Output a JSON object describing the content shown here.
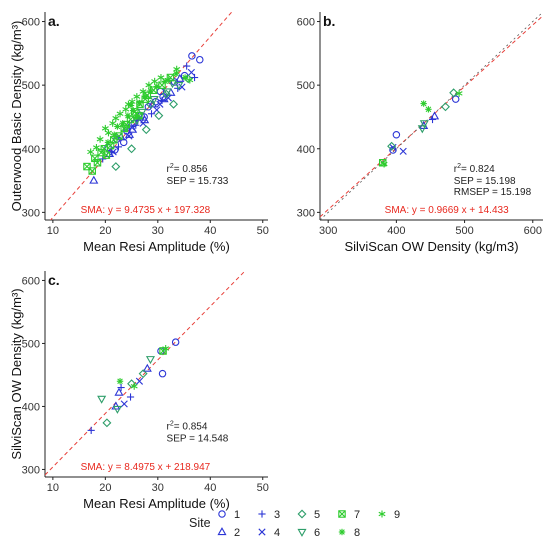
{
  "figure": {
    "legend_title": "Site",
    "legend_items": [
      {
        "label": "1",
        "symbol": "circle",
        "color": "#2b35d6"
      },
      {
        "label": "2",
        "symbol": "triangle",
        "color": "#2b35d6"
      },
      {
        "label": "3",
        "symbol": "plus",
        "color": "#2b35d6"
      },
      {
        "label": "4",
        "symbol": "cross",
        "color": "#2b35d6"
      },
      {
        "label": "5",
        "symbol": "diamond",
        "color": "#2e9e6a"
      },
      {
        "label": "6",
        "symbol": "down-triangle",
        "color": "#2e9e6a"
      },
      {
        "label": "7",
        "symbol": "square-cross",
        "color": "#2ecc2e"
      },
      {
        "label": "8",
        "symbol": "star",
        "color": "#2ecc2e"
      },
      {
        "label": "9",
        "symbol": "asterisk",
        "color": "#2ecc2e"
      }
    ],
    "colors": {
      "ref_line": "#e8403a",
      "sma_text": "#e8281e",
      "axis": "#222222",
      "tick_text": "#333333"
    }
  },
  "chart_data": [
    {
      "panel_label": "a.",
      "type": "scatter",
      "xlabel": "Mean Resi Amplitude (%)",
      "ylabel": "Outerwood Basic Density (kg/m³)",
      "xlim": [
        8.5,
        51
      ],
      "ylim": [
        288,
        615
      ],
      "xticks": [
        10,
        20,
        30,
        40,
        50
      ],
      "yticks": [
        300,
        400,
        500,
        600
      ],
      "r2_text": "= 0.856",
      "stats": [
        "SEP =  15.733"
      ],
      "sma_text": "SMA: y =  9.4735 x + 197.328",
      "ref_line": {
        "slope": 9.4735,
        "intercept": 197.328
      },
      "series": [
        {
          "site": "1",
          "points": [
            [
              20.5,
              402
            ],
            [
              22.2,
              415
            ],
            [
              24.1,
              428
            ],
            [
              25.5,
              440
            ],
            [
              26.8,
              452
            ],
            [
              28.2,
              466
            ],
            [
              29.6,
              474
            ],
            [
              31.0,
              482
            ],
            [
              33.2,
              505
            ],
            [
              35.1,
              515
            ],
            [
              36.5,
              546
            ],
            [
              38.0,
              540
            ],
            [
              23.5,
              410
            ],
            [
              27.4,
              450
            ],
            [
              30.5,
              490
            ],
            [
              21.8,
              398
            ]
          ]
        },
        {
          "site": "2",
          "points": [
            [
              17.8,
              350
            ],
            [
              20.8,
              392
            ],
            [
              23.0,
              418
            ],
            [
              25.2,
              430
            ],
            [
              27.5,
              445
            ],
            [
              29.0,
              470
            ],
            [
              31.2,
              478
            ],
            [
              32.5,
              488
            ],
            [
              34.2,
              510
            ],
            [
              24.6,
              422
            ]
          ]
        },
        {
          "site": "3",
          "points": [
            [
              19.5,
              384
            ],
            [
              22.5,
              403
            ],
            [
              25.8,
              437
            ],
            [
              28.8,
              455
            ],
            [
              30.8,
              476
            ],
            [
              33.8,
              495
            ],
            [
              37.0,
              512
            ],
            [
              35.5,
              530
            ],
            [
              26.2,
              445
            ],
            [
              21.2,
              395
            ]
          ]
        },
        {
          "site": "4",
          "points": [
            [
              21.5,
              395
            ],
            [
              24.5,
              420
            ],
            [
              27.2,
              440
            ],
            [
              29.8,
              461
            ],
            [
              32.0,
              480
            ],
            [
              34.6,
              497
            ],
            [
              36.4,
              520
            ],
            [
              30.4,
              470
            ],
            [
              25.0,
              434
            ]
          ]
        },
        {
          "site": "5",
          "points": [
            [
              22.0,
              372
            ],
            [
              25.0,
              400
            ],
            [
              27.8,
              430
            ],
            [
              30.2,
              452
            ],
            [
              33.0,
              470
            ],
            [
              35.8,
              510
            ],
            [
              28.6,
              470
            ],
            [
              31.6,
              486
            ]
          ]
        },
        {
          "site": "6",
          "points": [
            [
              23.8,
              433
            ],
            [
              27.0,
              458
            ],
            [
              29.3,
              478
            ],
            [
              31.8,
              490
            ],
            [
              34.0,
              500
            ],
            [
              26.0,
              445
            ],
            [
              32.8,
              503
            ]
          ]
        },
        {
          "site": "7",
          "points": [
            [
              16.5,
              372
            ],
            [
              17.5,
              365
            ],
            [
              18.0,
              385
            ],
            [
              18.5,
              378
            ],
            [
              19.2,
              394
            ],
            [
              20.2,
              390
            ],
            [
              21.0,
              405
            ],
            [
              22.6,
              420
            ],
            [
              23.6,
              432
            ],
            [
              24.8,
              446
            ],
            [
              25.6,
              458
            ],
            [
              26.6,
              470
            ],
            [
              28.0,
              484
            ],
            [
              29.2,
              492
            ],
            [
              30.8,
              500
            ],
            [
              32.4,
              512
            ],
            [
              19.8,
              400
            ],
            [
              21.6,
              414
            ],
            [
              24.0,
              438
            ],
            [
              26.4,
              452
            ],
            [
              27.6,
              478
            ]
          ]
        },
        {
          "site": "8",
          "points": [
            [
              20.5,
              410
            ],
            [
              21.7,
              422
            ],
            [
              23.3,
              440
            ],
            [
              24.3,
              452
            ],
            [
              25.3,
              460
            ],
            [
              26.5,
              472
            ],
            [
              27.6,
              482
            ],
            [
              28.6,
              491
            ],
            [
              29.8,
              498
            ],
            [
              31.4,
              506
            ],
            [
              33.5,
              518
            ],
            [
              35.2,
              512
            ],
            [
              22.3,
              435
            ],
            [
              25.9,
              450
            ],
            [
              24.9,
              468
            ]
          ]
        },
        {
          "site": "9",
          "points": [
            [
              17.2,
              395
            ],
            [
              18.3,
              402
            ],
            [
              19.0,
              415
            ],
            [
              20.6,
              425
            ],
            [
              21.4,
              440
            ],
            [
              22.8,
              455
            ],
            [
              23.9,
              462
            ],
            [
              25.1,
              474
            ],
            [
              26.0,
              482
            ],
            [
              27.2,
              490
            ],
            [
              28.3,
              500
            ],
            [
              29.4,
              506
            ],
            [
              30.6,
              512
            ],
            [
              32.0,
              508
            ],
            [
              33.6,
              525
            ],
            [
              36.1,
              508
            ],
            [
              20.0,
              432
            ],
            [
              22.0,
              448
            ],
            [
              24.4,
              470
            ]
          ]
        }
      ]
    },
    {
      "panel_label": "b.",
      "type": "scatter",
      "xlabel": "SilviScan OW Density (kg/m3)",
      "ylabel": "",
      "xlim": [
        288,
        615
      ],
      "ylim": [
        288,
        615
      ],
      "xticks": [
        300,
        400,
        500,
        600
      ],
      "yticks": [
        300,
        400,
        500,
        600
      ],
      "r2_text": "= 0.824",
      "stats": [
        "SEP =  15.198",
        "RMSEP =  15.198"
      ],
      "sma_text": "SMA: y =  0.9669 x + 14.433",
      "ref_line": {
        "slope": 0.9669,
        "intercept": 14.433
      },
      "series": [
        {
          "site": "1",
          "points": [
            [
              400,
              422
            ],
            [
              487,
              478
            ],
            [
              395,
              398
            ]
          ]
        },
        {
          "site": "2",
          "points": [
            [
              440,
              436
            ],
            [
              456,
              451
            ]
          ]
        },
        {
          "site": "3",
          "points": [
            [
              453,
              446
            ]
          ]
        },
        {
          "site": "4",
          "points": [
            [
              410,
              396
            ],
            [
              395,
              402
            ]
          ]
        },
        {
          "site": "5",
          "points": [
            [
              472,
              466
            ],
            [
              484,
              488
            ],
            [
              393,
              404
            ]
          ]
        },
        {
          "site": "6",
          "points": [
            [
              438,
              432
            ],
            [
              441,
              440
            ]
          ]
        },
        {
          "site": "7",
          "points": [
            [
              380,
              378
            ]
          ]
        },
        {
          "site": "8",
          "points": [
            [
              440,
              471
            ],
            [
              447,
              462
            ]
          ]
        },
        {
          "site": "9",
          "points": [
            [
              492,
              487
            ],
            [
              382,
              376
            ]
          ]
        }
      ]
    },
    {
      "panel_label": "c.",
      "type": "scatter",
      "xlabel": "Mean Resi Amplitude (%)",
      "ylabel": "SilviScan OW Density (kg/m³)",
      "xlim": [
        8.5,
        51
      ],
      "ylim": [
        288,
        615
      ],
      "xticks": [
        10,
        20,
        30,
        40,
        50
      ],
      "yticks": [
        300,
        400,
        500,
        600
      ],
      "r2_text": "= 0.854",
      "stats": [
        "SEP =  14.548"
      ],
      "sma_text": "SMA: y =  8.4975 x + 218.947",
      "ref_line": {
        "slope": 8.4975,
        "intercept": 218.947
      },
      "series": [
        {
          "site": "1",
          "points": [
            [
              33.4,
              502
            ],
            [
              30.6,
              488
            ],
            [
              30.9,
              452
            ]
          ]
        },
        {
          "site": "2",
          "points": [
            [
              22.6,
              422
            ],
            [
              28.0,
              460
            ],
            [
              22.0,
              400
            ]
          ]
        },
        {
          "site": "3",
          "points": [
            [
              17.3,
              362
            ],
            [
              23.0,
              430
            ],
            [
              24.8,
              415
            ]
          ]
        },
        {
          "site": "4",
          "points": [
            [
              26.5,
              440
            ],
            [
              23.6,
              404
            ]
          ]
        },
        {
          "site": "5",
          "points": [
            [
              20.3,
              374
            ],
            [
              25.0,
              436
            ],
            [
              27.2,
              452
            ]
          ]
        },
        {
          "site": "6",
          "points": [
            [
              19.3,
              412
            ],
            [
              28.6,
              475
            ],
            [
              22.3,
              396
            ]
          ]
        },
        {
          "site": "7",
          "points": [
            [
              31.0,
              488
            ]
          ]
        },
        {
          "site": "8",
          "points": [
            [
              22.8,
              440
            ]
          ]
        },
        {
          "site": "9",
          "points": [
            [
              25.5,
              432
            ],
            [
              31.5,
              492
            ]
          ]
        }
      ]
    }
  ]
}
